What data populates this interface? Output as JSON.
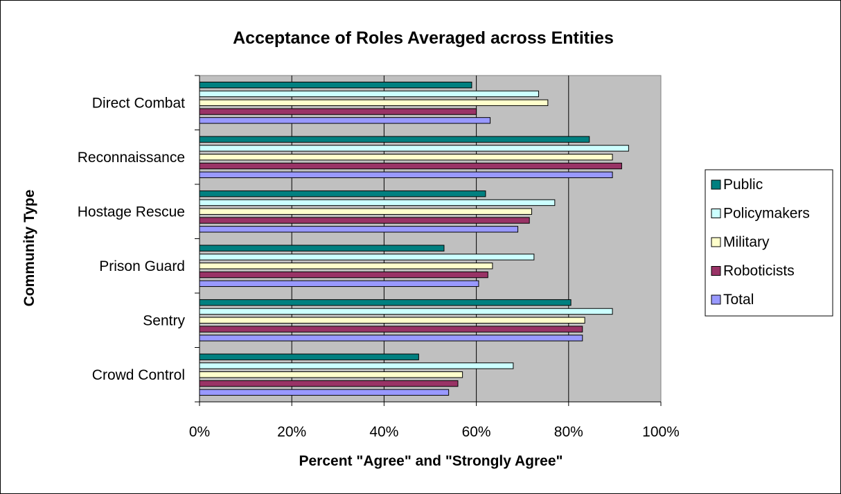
{
  "chart_data": {
    "type": "bar",
    "orientation": "horizontal",
    "title": "Acceptance of Roles Averaged across Entities",
    "xlabel": "Percent \"Agree\" and \"Strongly Agree\"",
    "ylabel": "Community Type",
    "xlim": [
      0,
      100
    ],
    "x_ticks": [
      "0%",
      "20%",
      "40%",
      "60%",
      "80%",
      "100%"
    ],
    "x_tick_values": [
      0,
      20,
      40,
      60,
      80,
      100
    ],
    "grid": true,
    "legend_position": "right",
    "categories": [
      "Direct Combat",
      "Reconnaissance",
      "Hostage Rescue",
      "Prison Guard",
      "Sentry",
      "Crowd Control"
    ],
    "series": [
      {
        "name": "Public",
        "color": "#008080",
        "values": [
          59,
          84.5,
          62,
          53,
          80.5,
          47.5
        ]
      },
      {
        "name": "Policymakers",
        "color": "#ccffff",
        "values": [
          73.5,
          93,
          77,
          72.5,
          89.5,
          68
        ]
      },
      {
        "name": "Military",
        "color": "#ffffcc",
        "values": [
          75.5,
          89.5,
          72,
          63.5,
          83.5,
          57
        ]
      },
      {
        "name": "Roboticists",
        "color": "#993366",
        "values": [
          60,
          91.5,
          71.5,
          62.5,
          83,
          56
        ]
      },
      {
        "name": "Total",
        "color": "#9999ff",
        "values": [
          63,
          89.5,
          69,
          60.5,
          83,
          54
        ]
      }
    ]
  }
}
